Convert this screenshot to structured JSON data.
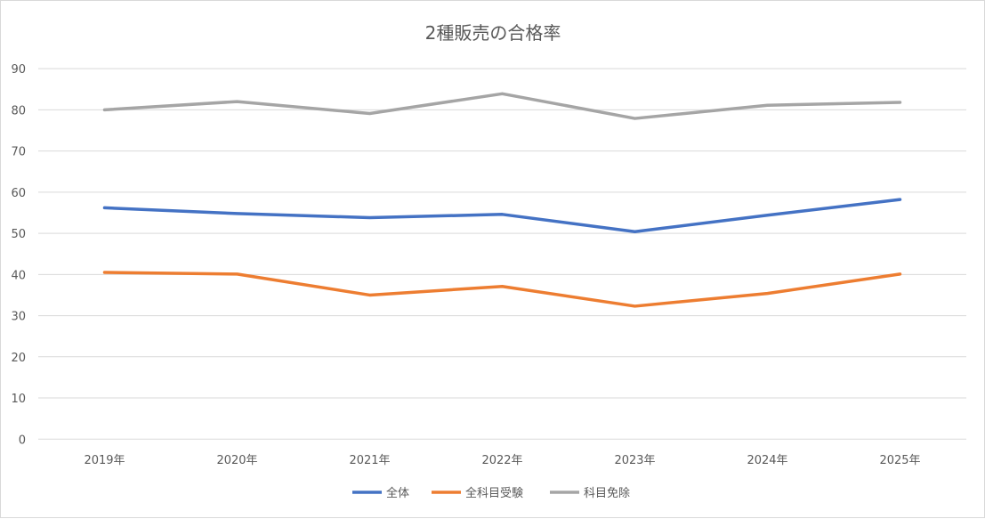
{
  "chart_data": {
    "type": "line",
    "title": "2種販売の合格率",
    "xlabel": "",
    "ylabel": "",
    "categories": [
      "2019年",
      "2020年",
      "2021年",
      "2022年",
      "2023年",
      "2024年",
      "2025年"
    ],
    "ylim": [
      0,
      90
    ],
    "yticks": [
      0,
      10,
      20,
      30,
      40,
      50,
      60,
      70,
      80,
      90
    ],
    "grid": true,
    "legend_position": "bottom",
    "series": [
      {
        "name": "全体",
        "color": "#4472c4",
        "values": [
          56.2,
          54.8,
          53.8,
          54.6,
          50.4,
          54.4,
          58.2
        ]
      },
      {
        "name": "全科目受験",
        "color": "#ed7d31",
        "values": [
          40.5,
          40.1,
          35.0,
          37.1,
          32.3,
          35.4,
          40.1
        ]
      },
      {
        "name": "科目免除",
        "color": "#a5a5a5",
        "values": [
          80.0,
          82.0,
          79.1,
          83.9,
          77.9,
          81.1,
          81.8
        ]
      }
    ]
  }
}
